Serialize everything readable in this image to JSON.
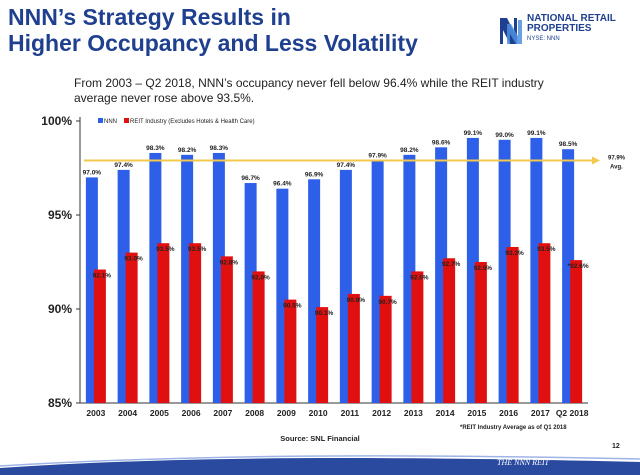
{
  "title": {
    "line1": "NNN’s Strategy Results in",
    "line2": "Higher Occupancy and Less Volatility"
  },
  "logo": {
    "name_line1": "NATIONAL RETAIL",
    "name_line2": "PROPERTIES",
    "ticker": "NYSE: NNN",
    "footer_text": "THE NNN REIT"
  },
  "subtitle": "From 2003 – Q2 2018, NNN’s occupancy never fell below 96.4% while the REIT industry average never rose above 93.5%.",
  "source": "Source:  SNL Financial",
  "footnote": "*REIT Industry Average as of Q1 2018",
  "page_number": "12",
  "colors": {
    "nnn": "#2e5fe8",
    "reit": "#e01010",
    "avg_line": "#f2c94c",
    "title": "#1f3f8f",
    "footer": "#2a4aa0"
  },
  "chart_data": {
    "type": "bar",
    "categories": [
      "2003",
      "2004",
      "2005",
      "2006",
      "2007",
      "2008",
      "2009",
      "2010",
      "2011",
      "2012",
      "2013",
      "2014",
      "2015",
      "2016",
      "2017",
      "Q2 2018"
    ],
    "series": [
      {
        "name": "NNN",
        "values": [
          97.0,
          97.4,
          98.3,
          98.2,
          98.3,
          96.7,
          96.4,
          96.9,
          97.4,
          97.9,
          98.2,
          98.6,
          99.1,
          99.0,
          99.1,
          98.5
        ],
        "labels": [
          "97.0%",
          "97.4%",
          "98.3%",
          "98.2%",
          "98.3%",
          "96.7%",
          "96.4%",
          "96.9%",
          "97.4%",
          "97.9%",
          "98.2%",
          "98.6%",
          "99.1%",
          "99.0%",
          "99.1%",
          "98.5%"
        ]
      },
      {
        "name": "REIT Industry (Excludes Hotels & Health Care)",
        "values": [
          92.1,
          93.0,
          93.5,
          93.5,
          92.8,
          92.0,
          90.5,
          90.1,
          90.8,
          90.7,
          92.0,
          92.7,
          92.5,
          93.3,
          93.5,
          92.6
        ],
        "labels": [
          "92.1%",
          "93.0%",
          "93.5%",
          "93.5%",
          "92.8%",
          "92.0%",
          "90.5%",
          "90.1%",
          "90.8%",
          "90.7%",
          "92.0%",
          "92.7%",
          "92.5%",
          "93.3%",
          "93.5%",
          "*92.6%"
        ]
      }
    ],
    "avg_line": {
      "value": 97.9,
      "label": "97.9%",
      "sublabel": "Avg."
    },
    "yticks": [
      "85%",
      "90%",
      "95%",
      "100%"
    ],
    "ytick_values": [
      85,
      90,
      95,
      100
    ],
    "ylim": [
      85,
      100
    ],
    "legend_position": "top-left",
    "grid": false
  }
}
